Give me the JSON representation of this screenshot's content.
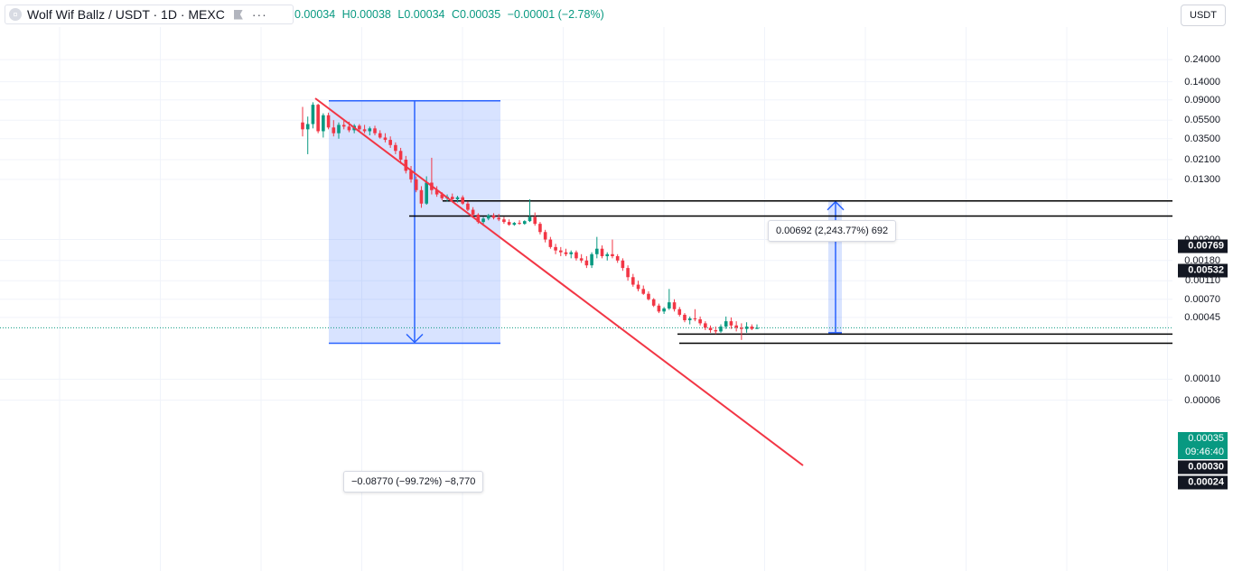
{
  "header": {
    "symbol_title": "Wolf Wif Ballz / USDT · 1D · MEXC",
    "symbol_icon": "coin-icon",
    "more_icon": "ellipsis-icon",
    "flag_icon": "flag-icon",
    "ohlc": {
      "open": "0.00034",
      "high": "H0.00038",
      "low": "L0.00034",
      "close": "C0.00035",
      "change": "−0.00001 (−2.78%)"
    },
    "currency_button": "USDT"
  },
  "colors": {
    "up": "#089981",
    "down": "#f23645",
    "trendline": "#f23645",
    "measure": "#2962ff",
    "grid": "#f0f3fa"
  },
  "price_axis": {
    "labels": [
      "0.24000",
      "0.14000",
      "0.09000",
      "0.05500",
      "0.03500",
      "0.02100",
      "0.01300",
      "0.00300",
      "0.00180",
      "0.00110",
      "0.00070",
      "0.00045",
      "0.00010",
      "0.00006"
    ]
  },
  "price_tags": {
    "p0769": "0.00769",
    "p0532": "0.00532",
    "p0030": "0.00030",
    "p0024": "0.00024",
    "last_price": "0.00035",
    "countdown": "09:46:40"
  },
  "measurements": {
    "down": "−0.08770 (−99.72%) −8,770",
    "up": "0.00692 (2,243.77%) 692"
  },
  "chart_data": {
    "type": "candlestick",
    "scale": "log",
    "ylim": [
      5e-05,
      0.3
    ],
    "candles": [
      [
        0.052,
        0.076,
        0.037,
        0.044
      ],
      [
        0.044,
        0.06,
        0.024,
        0.05
      ],
      [
        0.05,
        0.085,
        0.045,
        0.08
      ],
      [
        0.08,
        0.082,
        0.04,
        0.042
      ],
      [
        0.042,
        0.065,
        0.036,
        0.062
      ],
      [
        0.062,
        0.066,
        0.044,
        0.046
      ],
      [
        0.046,
        0.055,
        0.037,
        0.04
      ],
      [
        0.04,
        0.052,
        0.035,
        0.049
      ],
      [
        0.049,
        0.055,
        0.044,
        0.047
      ],
      [
        0.047,
        0.053,
        0.041,
        0.043
      ],
      [
        0.043,
        0.05,
        0.04,
        0.048
      ],
      [
        0.048,
        0.05,
        0.042,
        0.044
      ],
      [
        0.044,
        0.049,
        0.04,
        0.042
      ],
      [
        0.042,
        0.047,
        0.038,
        0.045
      ],
      [
        0.045,
        0.048,
        0.038,
        0.04
      ],
      [
        0.04,
        0.043,
        0.035,
        0.036
      ],
      [
        0.036,
        0.04,
        0.032,
        0.034
      ],
      [
        0.034,
        0.037,
        0.028,
        0.03
      ],
      [
        0.03,
        0.032,
        0.024,
        0.026
      ],
      [
        0.026,
        0.028,
        0.019,
        0.021
      ],
      [
        0.021,
        0.023,
        0.015,
        0.016
      ],
      [
        0.016,
        0.018,
        0.012,
        0.013
      ],
      [
        0.013,
        0.014,
        0.0095,
        0.01
      ],
      [
        0.01,
        0.011,
        0.0065,
        0.0072
      ],
      [
        0.0072,
        0.014,
        0.007,
        0.012
      ],
      [
        0.012,
        0.022,
        0.009,
        0.01
      ],
      [
        0.01,
        0.011,
        0.0085,
        0.009
      ],
      [
        0.009,
        0.0095,
        0.0078,
        0.0082
      ],
      [
        0.0082,
        0.009,
        0.0076,
        0.0085
      ],
      [
        0.0085,
        0.0092,
        0.0078,
        0.008
      ],
      [
        0.008,
        0.0087,
        0.0074,
        0.0084
      ],
      [
        0.0084,
        0.0088,
        0.007,
        0.0072
      ],
      [
        0.0072,
        0.0076,
        0.006,
        0.0062
      ],
      [
        0.0062,
        0.0066,
        0.0052,
        0.0055
      ],
      [
        0.0055,
        0.0057,
        0.0044,
        0.0046
      ],
      [
        0.0046,
        0.0052,
        0.0042,
        0.005
      ],
      [
        0.005,
        0.0056,
        0.0048,
        0.0054
      ],
      [
        0.0054,
        0.0057,
        0.0049,
        0.0051
      ],
      [
        0.0051,
        0.0056,
        0.0047,
        0.0049
      ],
      [
        0.0049,
        0.0052,
        0.0044,
        0.0046
      ],
      [
        0.0046,
        0.0049,
        0.0042,
        0.0043
      ],
      [
        0.0043,
        0.0046,
        0.0042,
        0.0045
      ],
      [
        0.0045,
        0.0048,
        0.0043,
        0.0044
      ],
      [
        0.0044,
        0.0048,
        0.0043,
        0.0047
      ],
      [
        0.0047,
        0.008,
        0.0046,
        0.0052
      ],
      [
        0.0052,
        0.0058,
        0.0042,
        0.0044
      ],
      [
        0.0044,
        0.0046,
        0.0034,
        0.0036
      ],
      [
        0.0036,
        0.0038,
        0.0028,
        0.003
      ],
      [
        0.003,
        0.0032,
        0.0024,
        0.0025
      ],
      [
        0.0025,
        0.0027,
        0.0021,
        0.0023
      ],
      [
        0.0023,
        0.0025,
        0.002,
        0.0022
      ],
      [
        0.0022,
        0.0024,
        0.002,
        0.0021
      ],
      [
        0.0021,
        0.0023,
        0.0019,
        0.0022
      ],
      [
        0.0022,
        0.0023,
        0.0018,
        0.0019
      ],
      [
        0.0019,
        0.0021,
        0.0017,
        0.0018
      ],
      [
        0.0018,
        0.002,
        0.0015,
        0.0016
      ],
      [
        0.0016,
        0.0022,
        0.0015,
        0.0021
      ],
      [
        0.0021,
        0.0032,
        0.0019,
        0.0024
      ],
      [
        0.0024,
        0.0026,
        0.0019,
        0.002
      ],
      [
        0.002,
        0.0022,
        0.0018,
        0.0021
      ],
      [
        0.0021,
        0.003,
        0.0019,
        0.002
      ],
      [
        0.002,
        0.0021,
        0.0017,
        0.0018
      ],
      [
        0.0018,
        0.0019,
        0.0014,
        0.0015
      ],
      [
        0.0015,
        0.0016,
        0.0011,
        0.0012
      ],
      [
        0.0012,
        0.0013,
        0.00095,
        0.001
      ],
      [
        0.001,
        0.0011,
        0.00085,
        0.0009
      ],
      [
        0.0009,
        0.00098,
        0.00078,
        0.0008
      ],
      [
        0.0008,
        0.00085,
        0.00068,
        0.0007
      ],
      [
        0.0007,
        0.00072,
        0.00058,
        0.0006
      ],
      [
        0.0006,
        0.00063,
        0.0005,
        0.00052
      ],
      [
        0.00052,
        0.00058,
        0.00049,
        0.00056
      ],
      [
        0.00056,
        0.0009,
        0.00054,
        0.00065
      ],
      [
        0.00065,
        0.0007,
        0.00052,
        0.00055
      ],
      [
        0.00055,
        0.00058,
        0.00046,
        0.00048
      ],
      [
        0.00048,
        0.0005,
        0.0004,
        0.00042
      ],
      [
        0.00042,
        0.00046,
        0.00038,
        0.00044
      ],
      [
        0.00044,
        0.00055,
        0.00041,
        0.00043
      ],
      [
        0.00043,
        0.00046,
        0.00037,
        0.00039
      ],
      [
        0.00039,
        0.00041,
        0.00033,
        0.00035
      ],
      [
        0.00035,
        0.00037,
        0.00031,
        0.00033
      ],
      [
        0.00033,
        0.00036,
        0.0003,
        0.00032
      ],
      [
        0.00032,
        0.00038,
        0.00031,
        0.00036
      ],
      [
        0.00036,
        0.00046,
        0.00034,
        0.00041
      ],
      [
        0.00041,
        0.00045,
        0.00034,
        0.00037
      ],
      [
        0.00037,
        0.00041,
        0.00032,
        0.00035
      ],
      [
        0.00035,
        0.00039,
        0.00026,
        0.00034
      ],
      [
        0.00034,
        0.0004,
        0.00031,
        0.00036
      ],
      [
        0.00036,
        0.00038,
        0.00033,
        0.00034
      ],
      [
        0.00034,
        0.00038,
        0.00034,
        0.00035
      ]
    ]
  }
}
